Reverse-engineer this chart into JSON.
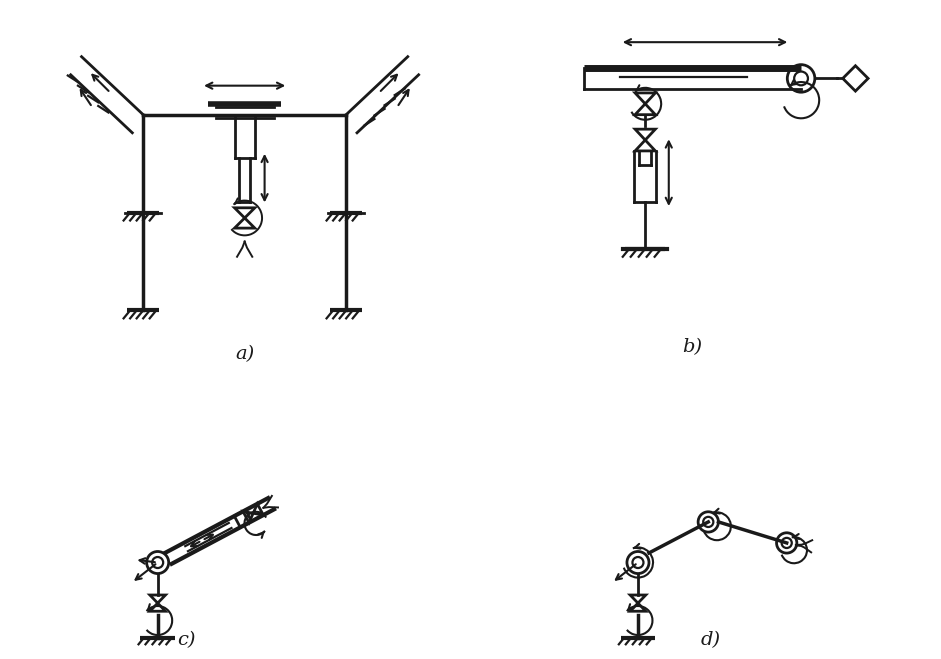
{
  "bg": "#ffffff",
  "lc": "#1a1a1a",
  "lw": 2.0,
  "lw_thick": 3.0,
  "lw_thin": 1.4,
  "label_fs": 14,
  "labels": [
    "a)",
    "b)",
    "c)",
    "d)"
  ]
}
